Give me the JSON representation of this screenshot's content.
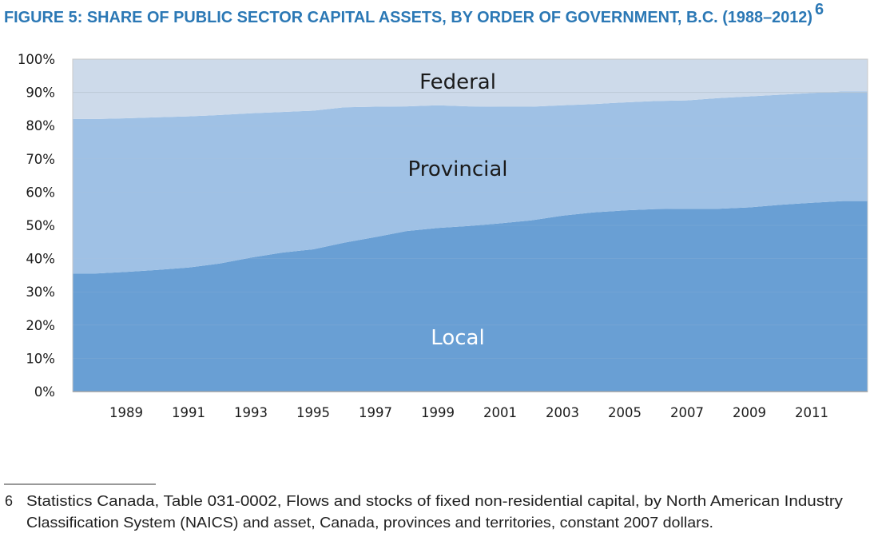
{
  "chart_data": {
    "type": "area",
    "stacked": true,
    "title": "FIGURE 5: SHARE OF PUBLIC SECTOR CAPITAL ASSETS, BY ORDER OF GOVERNMENT, B.C. (1988–2012)",
    "title_superscript": "6",
    "xlabel": "",
    "ylabel": "",
    "ylim": [
      0,
      100
    ],
    "y_ticks": [
      "0%",
      "10%",
      "20%",
      "30%",
      "40%",
      "50%",
      "60%",
      "70%",
      "80%",
      "90%",
      "100%"
    ],
    "x": [
      1988,
      1989,
      1990,
      1991,
      1992,
      1993,
      1994,
      1995,
      1996,
      1997,
      1998,
      1999,
      2000,
      2001,
      2002,
      2003,
      2004,
      2005,
      2006,
      2007,
      2008,
      2009,
      2010,
      2011,
      2012
    ],
    "x_tick_labels": [
      "1989",
      "1991",
      "1993",
      "1995",
      "1997",
      "1999",
      "2001",
      "2003",
      "2005",
      "2007",
      "2009",
      "2011"
    ],
    "grid": true,
    "series": [
      {
        "name": "Local",
        "color": "#699fd4",
        "label_color": "#ffffff",
        "values": [
          35.5,
          36.0,
          36.6,
          37.3,
          38.5,
          40.3,
          41.8,
          42.8,
          44.8,
          46.5,
          48.3,
          49.2,
          49.8,
          50.6,
          51.5,
          52.9,
          53.9,
          54.5,
          54.9,
          55.0,
          55.0,
          55.4,
          56.2,
          56.8,
          57.3
        ]
      },
      {
        "name": "Provincial",
        "color": "#9fc1e5",
        "label_color": "#1a1a1a",
        "values": [
          46.5,
          46.2,
          45.9,
          45.5,
          44.7,
          43.4,
          42.3,
          41.7,
          40.7,
          39.2,
          37.5,
          36.9,
          36.0,
          35.1,
          34.2,
          33.2,
          32.6,
          32.5,
          32.5,
          32.6,
          33.3,
          33.4,
          33.1,
          33.0,
          33.0
        ]
      },
      {
        "name": "Federal",
        "color": "#cddaea",
        "label_color": "#1a1a1a",
        "values": [
          18.0,
          17.8,
          17.5,
          17.2,
          16.8,
          16.3,
          15.9,
          15.5,
          14.5,
          14.3,
          14.2,
          13.9,
          14.2,
          14.3,
          14.3,
          13.9,
          13.5,
          13.0,
          12.6,
          12.4,
          11.7,
          11.2,
          10.7,
          10.2,
          9.7
        ]
      }
    ]
  },
  "colors": {
    "title": "#2b78b5"
  },
  "footnote": {
    "number": "6",
    "line1": "Statistics Canada, Table 031-0002, Flows and stocks of fixed non-residential capital, by North American Industry",
    "line2": "Classification System (NAICS) and asset, Canada, provinces and territories, constant 2007 dollars."
  }
}
